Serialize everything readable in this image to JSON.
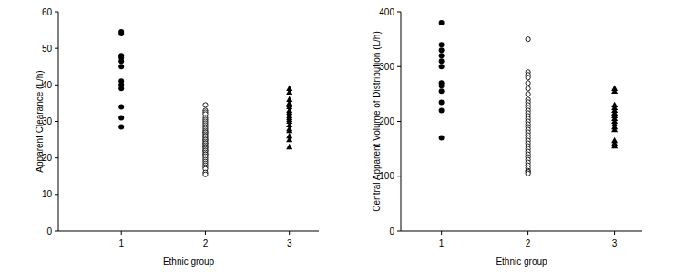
{
  "chart_data": [
    {
      "type": "scatter",
      "x_label": "Ethnic group",
      "y_label": "Apparent Clearance (L/h)",
      "xlim": [
        0.25,
        3.35
      ],
      "ylim": [
        0,
        60
      ],
      "xticks": [
        1,
        2,
        3
      ],
      "yticks": [
        0,
        10,
        20,
        30,
        40,
        50,
        60
      ],
      "series": [
        {
          "marker": "circle",
          "color": "#000000",
          "x": [
            1,
            1,
            1,
            1,
            1,
            1,
            1,
            1,
            1,
            1,
            1,
            1
          ],
          "values": [
            54.5,
            54,
            48,
            47.5,
            46.5,
            45,
            41,
            40,
            39,
            34,
            31,
            28.5
          ]
        },
        {
          "marker": "circle-open",
          "color": "#000000",
          "x": [
            2,
            2,
            2,
            2,
            2,
            2,
            2,
            2,
            2,
            2,
            2,
            2,
            2,
            2,
            2,
            2,
            2,
            2,
            2,
            2,
            2,
            2,
            2,
            2,
            2,
            2,
            2,
            2,
            2,
            2,
            2,
            2,
            2,
            2,
            2,
            2,
            2,
            2,
            2,
            2,
            2,
            2
          ],
          "values": [
            34.5,
            33,
            32.5,
            32,
            31,
            30.5,
            30,
            29.5,
            29,
            28.5,
            28,
            27.5,
            27,
            27,
            26.5,
            26,
            26,
            25.5,
            25,
            25,
            24.5,
            24,
            24,
            23.5,
            23,
            23,
            22.5,
            22,
            22,
            21.5,
            21,
            21,
            20.5,
            20,
            19.5,
            19,
            18.5,
            18,
            17.5,
            17,
            16,
            15.5
          ]
        },
        {
          "marker": "triangle",
          "color": "#000000",
          "x": [
            3,
            3,
            3,
            3,
            3,
            3,
            3,
            3,
            3,
            3,
            3,
            3,
            3,
            3,
            3,
            3,
            3,
            3,
            3
          ],
          "values": [
            39,
            38,
            36,
            35,
            34.5,
            34,
            33,
            32.5,
            32,
            31.5,
            31,
            30.5,
            30,
            29,
            28,
            27.5,
            26,
            25,
            23
          ]
        }
      ]
    },
    {
      "type": "scatter",
      "x_label": "Ethnic group",
      "y_label": "Central Apparent Volume of Distribution (L/h)",
      "xlim": [
        0.53,
        3.32
      ],
      "ylim": [
        0,
        400
      ],
      "xticks": [
        1,
        2,
        3
      ],
      "yticks": [
        0,
        100,
        200,
        300,
        400
      ],
      "series": [
        {
          "marker": "circle",
          "color": "#000000",
          "x": [
            1,
            1,
            1,
            1,
            1,
            1,
            1,
            1,
            1,
            1,
            1,
            1
          ],
          "values": [
            380,
            340,
            330,
            320,
            310,
            300,
            270,
            265,
            255,
            235,
            220,
            170
          ]
        },
        {
          "marker": "circle-open",
          "color": "#000000",
          "x": [
            2,
            2,
            2,
            2,
            2,
            2,
            2,
            2,
            2,
            2,
            2,
            2,
            2,
            2,
            2,
            2,
            2,
            2,
            2,
            2,
            2,
            2,
            2,
            2,
            2,
            2,
            2,
            2,
            2,
            2,
            2,
            2,
            2,
            2,
            2,
            2
          ],
          "values": [
            350,
            290,
            285,
            280,
            270,
            260,
            250,
            240,
            235,
            230,
            225,
            220,
            215,
            210,
            205,
            200,
            195,
            190,
            185,
            180,
            175,
            170,
            165,
            160,
            155,
            150,
            145,
            140,
            135,
            130,
            125,
            120,
            115,
            110,
            108,
            105
          ]
        },
        {
          "marker": "triangle",
          "color": "#000000",
          "x": [
            3,
            3,
            3,
            3,
            3,
            3,
            3,
            3,
            3,
            3,
            3,
            3,
            3,
            3,
            3
          ],
          "values": [
            260,
            255,
            230,
            225,
            220,
            215,
            210,
            205,
            200,
            195,
            190,
            185,
            165,
            160,
            155
          ]
        }
      ]
    }
  ]
}
